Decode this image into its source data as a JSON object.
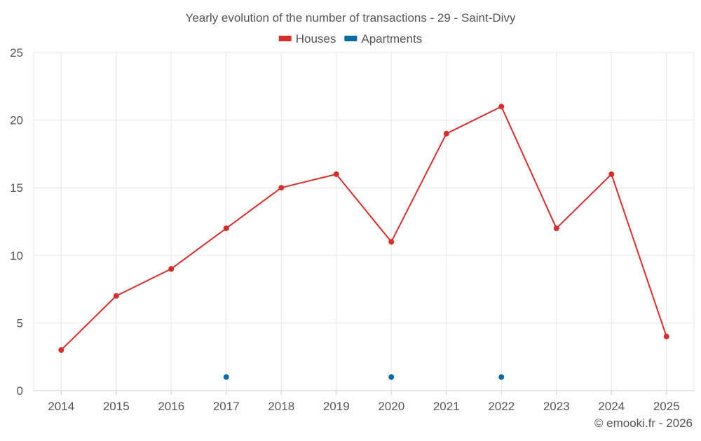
{
  "chart_data": {
    "type": "line",
    "title": "Yearly evolution of the number of transactions - 29 - Saint-Divy",
    "xlabel": "",
    "ylabel": "",
    "categories": [
      "2014",
      "2015",
      "2016",
      "2017",
      "2018",
      "2019",
      "2020",
      "2021",
      "2022",
      "2023",
      "2024",
      "2025"
    ],
    "ylim": [
      0,
      25
    ],
    "yticks": [
      0,
      5,
      10,
      15,
      20,
      25
    ],
    "grid": true,
    "legend_position": "top-center",
    "series": [
      {
        "name": "Houses",
        "color": "#d32f2f",
        "style": "line-markers",
        "values": [
          3,
          7,
          9,
          12,
          15,
          16,
          11,
          19,
          21,
          12,
          16,
          4
        ]
      },
      {
        "name": "Apartments",
        "color": "#0b6aa2",
        "style": "markers",
        "values": [
          null,
          null,
          null,
          1,
          null,
          null,
          1,
          null,
          1,
          null,
          null,
          null
        ]
      }
    ]
  },
  "credit": "© emooki.fr - 2026",
  "colors": {
    "text": "#555555",
    "grid": "#e6e6e6",
    "axis": "#cccccc"
  }
}
